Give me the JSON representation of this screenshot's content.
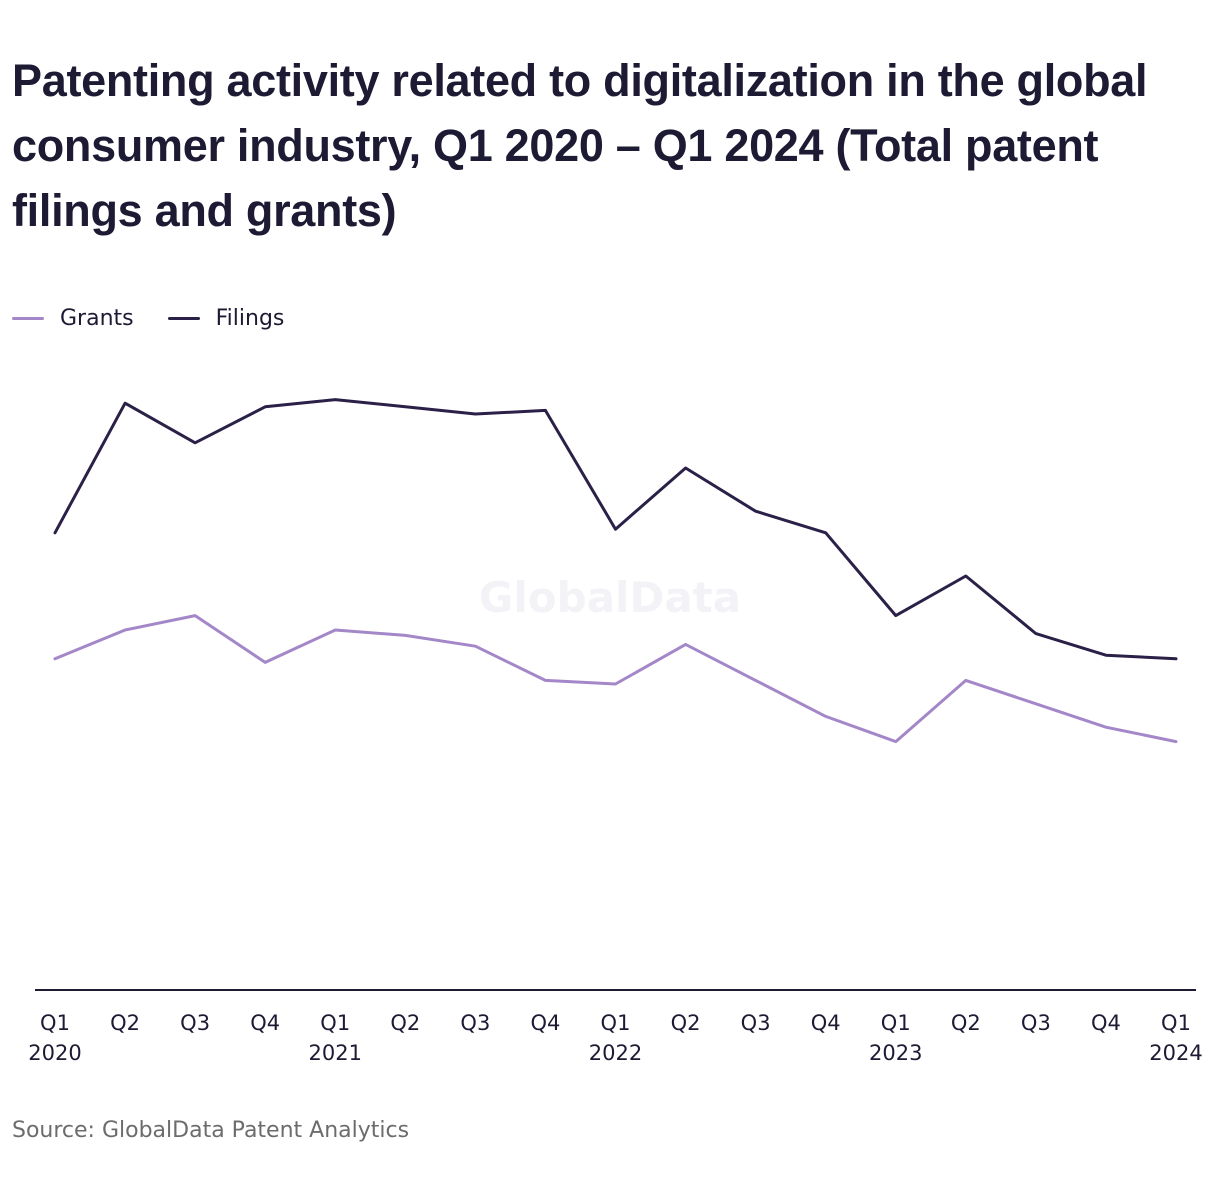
{
  "chart_data": {
    "type": "line",
    "title": "Patenting activity related to digitalization in the global consumer industry, Q1 2020 – Q1 2024 (Total patent filings and grants)",
    "quarters": [
      "Q1",
      "Q2",
      "Q3",
      "Q4",
      "Q1",
      "Q2",
      "Q3",
      "Q4",
      "Q1",
      "Q2",
      "Q3",
      "Q4",
      "Q1",
      "Q2",
      "Q3",
      "Q4",
      "Q1"
    ],
    "years": [
      "2020",
      "",
      "",
      "",
      "2021",
      "",
      "",
      "",
      "2022",
      "",
      "",
      "",
      "2023",
      "",
      "",
      "",
      "2024"
    ],
    "series": [
      {
        "name": "Grants",
        "color": "#a487c8",
        "values": [
          920,
          1000,
          1040,
          910,
          1000,
          985,
          955,
          860,
          850,
          960,
          860,
          760,
          690,
          860,
          795,
          730,
          690
        ]
      },
      {
        "name": "Filings",
        "color": "#2b2047",
        "values": [
          1270,
          1630,
          1520,
          1620,
          1640,
          1620,
          1600,
          1610,
          1280,
          1450,
          1330,
          1270,
          1040,
          1150,
          990,
          930,
          920
        ]
      }
    ],
    "ylim": [
      0,
      1800
    ],
    "grid": false,
    "legend_position": "top-left",
    "watermark": "GlobalData"
  },
  "source": "Source: GlobalData Patent Analytics"
}
